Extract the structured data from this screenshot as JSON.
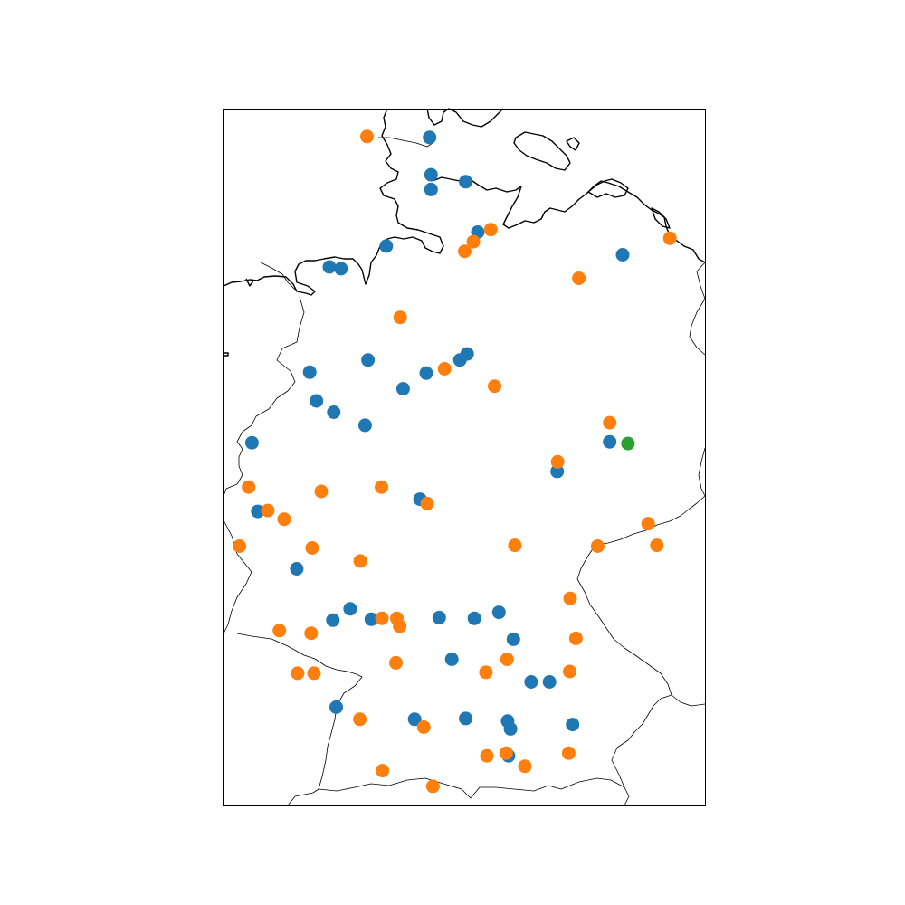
{
  "map": {
    "title": "",
    "region": "Germany",
    "projection": "plate-carree",
    "extent": {
      "lon": [
        5.5,
        15.5
      ],
      "lat": [
        47.2,
        55.2
      ]
    },
    "frame": true,
    "colors": {
      "coast": "#000000",
      "border": "#000000",
      "blue": "#1f77b4",
      "orange": "#ff7f0e",
      "green": "#2ca02c",
      "background": "#ffffff"
    }
  },
  "chart_data": {
    "type": "scatter",
    "xlabel": "",
    "ylabel": "",
    "xlim": [
      5.5,
      15.5
    ],
    "ylim": [
      47.2,
      55.2
    ],
    "grid": false,
    "legend": "none",
    "series": [
      {
        "color": "#1f77b4",
        "points": [
          [
            9.78,
            54.88
          ],
          [
            9.81,
            54.45
          ],
          [
            9.81,
            54.28
          ],
          [
            10.53,
            54.37
          ],
          [
            10.78,
            53.79
          ],
          [
            13.79,
            53.53
          ],
          [
            8.88,
            53.63
          ],
          [
            7.7,
            53.39
          ],
          [
            7.94,
            53.37
          ],
          [
            10.56,
            52.39
          ],
          [
            7.29,
            52.18
          ],
          [
            8.5,
            52.32
          ],
          [
            10.41,
            52.32
          ],
          [
            9.71,
            52.17
          ],
          [
            9.23,
            51.99
          ],
          [
            7.43,
            51.85
          ],
          [
            7.79,
            51.72
          ],
          [
            8.44,
            51.57
          ],
          [
            6.09,
            51.37
          ],
          [
            13.52,
            51.38
          ],
          [
            12.43,
            51.04
          ],
          [
            9.58,
            50.72
          ],
          [
            6.21,
            50.58
          ],
          [
            7.02,
            49.92
          ],
          [
            8.13,
            49.46
          ],
          [
            7.77,
            49.33
          ],
          [
            8.57,
            49.34
          ],
          [
            10.71,
            49.35
          ],
          [
            11.22,
            49.42
          ],
          [
            9.98,
            49.36
          ],
          [
            11.52,
            49.11
          ],
          [
            10.24,
            48.88
          ],
          [
            11.89,
            48.62
          ],
          [
            12.27,
            48.62
          ],
          [
            12.75,
            48.13
          ],
          [
            7.84,
            48.33
          ],
          [
            9.47,
            48.19
          ],
          [
            10.53,
            48.2
          ],
          [
            11.4,
            48.17
          ],
          [
            11.46,
            48.08
          ],
          [
            11.42,
            47.77
          ]
        ]
      },
      {
        "color": "#ff7f0e",
        "points": [
          [
            8.48,
            54.89
          ],
          [
            14.77,
            53.72
          ],
          [
            11.05,
            53.82
          ],
          [
            10.69,
            53.68
          ],
          [
            10.51,
            53.57
          ],
          [
            12.88,
            53.26
          ],
          [
            9.17,
            52.81
          ],
          [
            10.09,
            52.22
          ],
          [
            11.13,
            52.02
          ],
          [
            13.52,
            51.6
          ],
          [
            12.44,
            51.15
          ],
          [
            6.02,
            50.86
          ],
          [
            7.53,
            50.81
          ],
          [
            8.78,
            50.86
          ],
          [
            9.73,
            50.67
          ],
          [
            6.42,
            50.59
          ],
          [
            6.76,
            50.49
          ],
          [
            5.83,
            50.18
          ],
          [
            7.34,
            50.16
          ],
          [
            8.34,
            50.01
          ],
          [
            11.55,
            50.19
          ],
          [
            13.27,
            50.18
          ],
          [
            14.32,
            50.44
          ],
          [
            14.5,
            50.19
          ],
          [
            8.79,
            49.35
          ],
          [
            9.1,
            49.35
          ],
          [
            9.16,
            49.26
          ],
          [
            6.66,
            49.21
          ],
          [
            7.32,
            49.18
          ],
          [
            12.7,
            49.58
          ],
          [
            9.08,
            48.84
          ],
          [
            11.39,
            48.88
          ],
          [
            10.95,
            48.73
          ],
          [
            12.82,
            49.12
          ],
          [
            12.69,
            48.74
          ],
          [
            7.04,
            48.72
          ],
          [
            7.38,
            48.72
          ],
          [
            8.33,
            48.19
          ],
          [
            9.66,
            48.1
          ],
          [
            11.37,
            47.8
          ],
          [
            12.67,
            47.8
          ],
          [
            8.8,
            47.6
          ],
          [
            10.97,
            47.77
          ],
          [
            11.76,
            47.65
          ],
          [
            9.85,
            47.42
          ]
        ]
      },
      {
        "color": "#2ca02c",
        "points": [
          [
            13.9,
            51.36
          ]
        ]
      }
    ]
  }
}
